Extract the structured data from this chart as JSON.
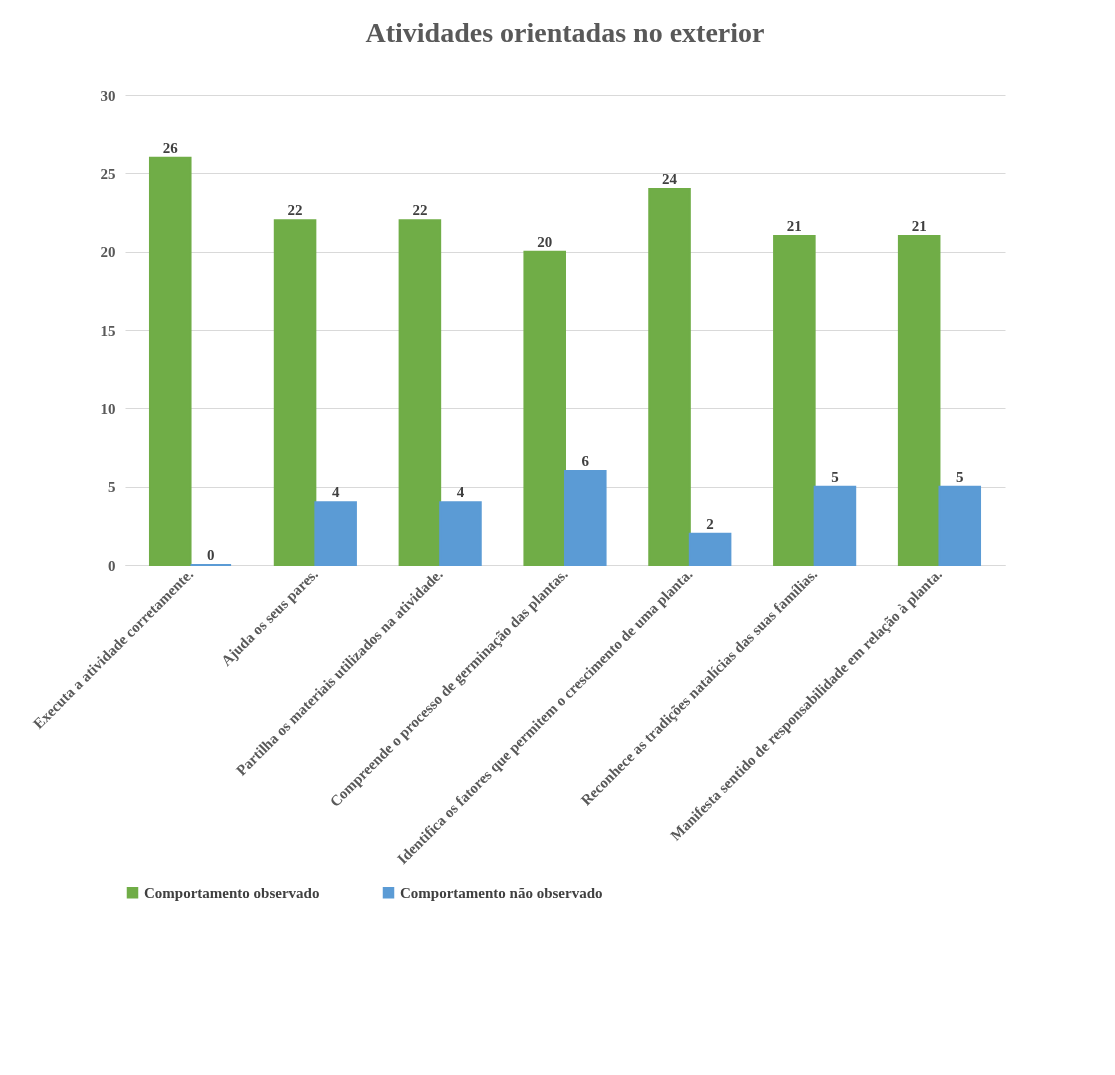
{
  "chart_data": {
    "type": "bar",
    "title": "Atividades orientadas no exterior",
    "categories": [
      "Executa a atividade corretamente.",
      "Ajuda os seus pares.",
      "Partilha os materiais utilizados na atividade.",
      "Compreende o processo de germinação das plantas.",
      "Identifica os fatores que permitem o crescimento de uma planta.",
      "Reconhece as tradições natalícias das suas famílias.",
      "Manifesta sentido de responsabilidade em relação à planta."
    ],
    "series": [
      {
        "name": "Comportamento observado",
        "color": "#70ad47",
        "values": [
          26,
          22,
          22,
          20,
          24,
          21,
          21
        ]
      },
      {
        "name": "Comportamento não observado",
        "color": "#5b9bd5",
        "values": [
          0,
          4,
          4,
          6,
          2,
          5,
          5
        ]
      }
    ],
    "ylim": [
      0,
      30
    ],
    "yticks": [
      0,
      5,
      10,
      15,
      20,
      25,
      30
    ],
    "grid": "y",
    "legend": "bottom",
    "data_labels": true
  }
}
